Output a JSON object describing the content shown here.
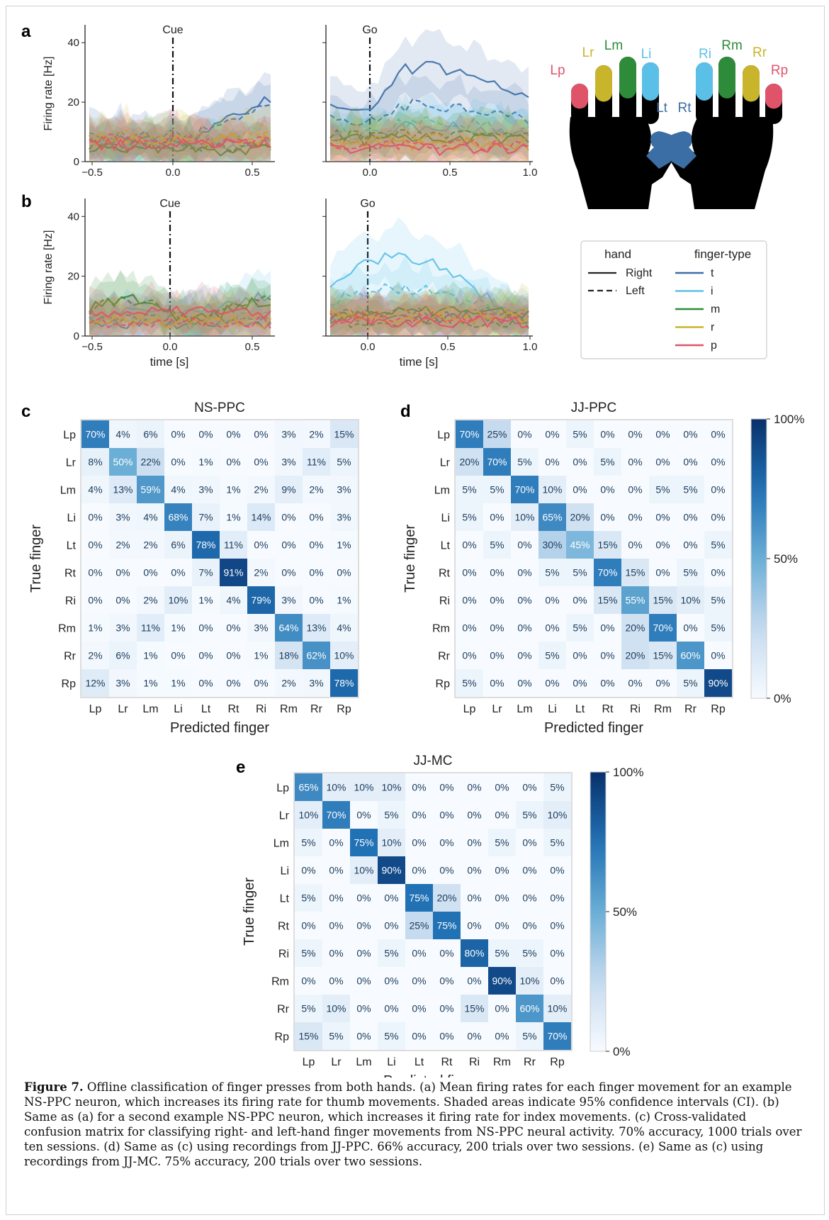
{
  "panel_labels": {
    "a": "a",
    "b": "b",
    "c": "c",
    "d": "d",
    "e": "e"
  },
  "psth": {
    "ylabel": "Firing rate [Hz]",
    "xlabel": "time [s]",
    "cue_label": "Cue",
    "go_label": "Go",
    "cue_xticks": [
      "−0.5",
      "0.0",
      "0.5"
    ],
    "go_xticks": [
      "0.0",
      "0.5",
      "1.0"
    ],
    "yticks": [
      "0",
      "20",
      "40"
    ]
  },
  "legend": {
    "hand_title": "hand",
    "finger_title": "finger-type",
    "hand_items": [
      {
        "label": "Right",
        "style": "solid"
      },
      {
        "label": "Left",
        "style": "dashed"
      }
    ],
    "finger_items": [
      {
        "label": "t",
        "color": "#3b6ea5"
      },
      {
        "label": "i",
        "color": "#5bc0e8"
      },
      {
        "label": "m",
        "color": "#2e8b3a"
      },
      {
        "label": "r",
        "color": "#c9b52b"
      },
      {
        "label": "p",
        "color": "#e0546a"
      }
    ]
  },
  "hands": {
    "left": [
      {
        "label": "Lp",
        "color": "#e0546a"
      },
      {
        "label": "Lr",
        "color": "#c9b52b"
      },
      {
        "label": "Lm",
        "color": "#2e8b3a"
      },
      {
        "label": "Li",
        "color": "#5bc0e8"
      },
      {
        "label": "Lt",
        "color": "#3b6ea5"
      }
    ],
    "right": [
      {
        "label": "Ri",
        "color": "#5bc0e8"
      },
      {
        "label": "Rm",
        "color": "#2e8b3a"
      },
      {
        "label": "Rr",
        "color": "#c9b52b"
      },
      {
        "label": "Rp",
        "color": "#e0546a"
      },
      {
        "label": "Rt",
        "color": "#3b6ea5"
      }
    ]
  },
  "chart_data": [
    {
      "type": "heatmap",
      "title": "NS-PPC",
      "xlabel": "Predicted finger",
      "ylabel": "True finger",
      "categories": [
        "Lp",
        "Lr",
        "Lm",
        "Li",
        "Lt",
        "Rt",
        "Ri",
        "Rm",
        "Rr",
        "Rp"
      ],
      "values": [
        [
          70,
          4,
          6,
          0,
          0,
          0,
          0,
          3,
          2,
          15
        ],
        [
          8,
          50,
          22,
          0,
          1,
          0,
          0,
          3,
          11,
          5
        ],
        [
          4,
          13,
          59,
          4,
          3,
          1,
          2,
          9,
          2,
          3
        ],
        [
          0,
          3,
          4,
          68,
          7,
          1,
          14,
          0,
          0,
          3
        ],
        [
          0,
          2,
          2,
          6,
          78,
          11,
          0,
          0,
          0,
          1
        ],
        [
          0,
          0,
          0,
          0,
          7,
          91,
          2,
          0,
          0,
          0
        ],
        [
          0,
          0,
          2,
          10,
          1,
          4,
          79,
          3,
          0,
          1
        ],
        [
          1,
          3,
          11,
          1,
          0,
          0,
          3,
          64,
          13,
          4
        ],
        [
          2,
          6,
          1,
          0,
          0,
          0,
          1,
          18,
          62,
          10
        ],
        [
          12,
          3,
          1,
          1,
          0,
          0,
          0,
          2,
          3,
          78
        ]
      ]
    },
    {
      "type": "heatmap",
      "title": "JJ-PPC",
      "xlabel": "Predicted finger",
      "ylabel": "True finger",
      "categories": [
        "Lp",
        "Lr",
        "Lm",
        "Li",
        "Lt",
        "Rt",
        "Ri",
        "Rm",
        "Rr",
        "Rp"
      ],
      "colorbar_ticks": [
        "100%",
        "50%",
        "0%"
      ],
      "values": [
        [
          70,
          25,
          0,
          0,
          5,
          0,
          0,
          0,
          0,
          0
        ],
        [
          20,
          70,
          5,
          0,
          0,
          5,
          0,
          0,
          0,
          0
        ],
        [
          5,
          5,
          70,
          10,
          0,
          0,
          0,
          5,
          5,
          0
        ],
        [
          5,
          0,
          10,
          65,
          20,
          0,
          0,
          0,
          0,
          0
        ],
        [
          0,
          5,
          0,
          30,
          45,
          15,
          0,
          0,
          0,
          5
        ],
        [
          0,
          0,
          0,
          5,
          5,
          70,
          15,
          0,
          5,
          0
        ],
        [
          0,
          0,
          0,
          0,
          0,
          15,
          55,
          15,
          10,
          5
        ],
        [
          0,
          0,
          0,
          0,
          5,
          0,
          20,
          70,
          0,
          5
        ],
        [
          0,
          0,
          0,
          5,
          0,
          0,
          20,
          15,
          60,
          0
        ],
        [
          5,
          0,
          0,
          0,
          0,
          0,
          0,
          0,
          5,
          90
        ]
      ]
    },
    {
      "type": "heatmap",
      "title": "JJ-MC",
      "xlabel": "Predicted finger",
      "ylabel": "True finger",
      "categories": [
        "Lp",
        "Lr",
        "Lm",
        "Li",
        "Lt",
        "Rt",
        "Ri",
        "Rm",
        "Rr",
        "Rp"
      ],
      "colorbar_ticks": [
        "100%",
        "50%",
        "0%"
      ],
      "values": [
        [
          65,
          10,
          10,
          10,
          0,
          0,
          0,
          0,
          0,
          5
        ],
        [
          10,
          70,
          0,
          5,
          0,
          0,
          0,
          0,
          5,
          10
        ],
        [
          5,
          0,
          75,
          10,
          0,
          0,
          0,
          5,
          0,
          5
        ],
        [
          0,
          0,
          10,
          90,
          0,
          0,
          0,
          0,
          0,
          0
        ],
        [
          5,
          0,
          0,
          0,
          75,
          20,
          0,
          0,
          0,
          0
        ],
        [
          0,
          0,
          0,
          0,
          25,
          75,
          0,
          0,
          0,
          0
        ],
        [
          5,
          0,
          0,
          5,
          0,
          0,
          80,
          5,
          5,
          0
        ],
        [
          0,
          0,
          0,
          0,
          0,
          0,
          0,
          90,
          10,
          0
        ],
        [
          5,
          10,
          0,
          0,
          0,
          0,
          15,
          0,
          60,
          10
        ],
        [
          15,
          5,
          0,
          5,
          0,
          0,
          0,
          0,
          5,
          70
        ]
      ]
    }
  ],
  "caption": {
    "figure_label": "Figure 7.",
    "text": " Offline classification of finger presses from both hands. (a) Mean firing rates for each finger movement for an example NS-PPC neuron, which increases its firing rate for thumb movements. Shaded areas indicate 95% confidence intervals (CI). (b) Same as (a) for a second example NS-PPC neuron, which increases it firing rate for index movements. (c) Cross-validated confusion matrix for classifying right- and left-hand finger movements from NS-PPC neural activity. 70% accuracy, 1000 trials over ten sessions. (d) Same as (c) using recordings from JJ-PPC. 66% accuracy, 200 trials over two sessions. (e) Same as (c) using recordings from JJ-MC. 75% accuracy, 200 trials over two sessions."
  }
}
